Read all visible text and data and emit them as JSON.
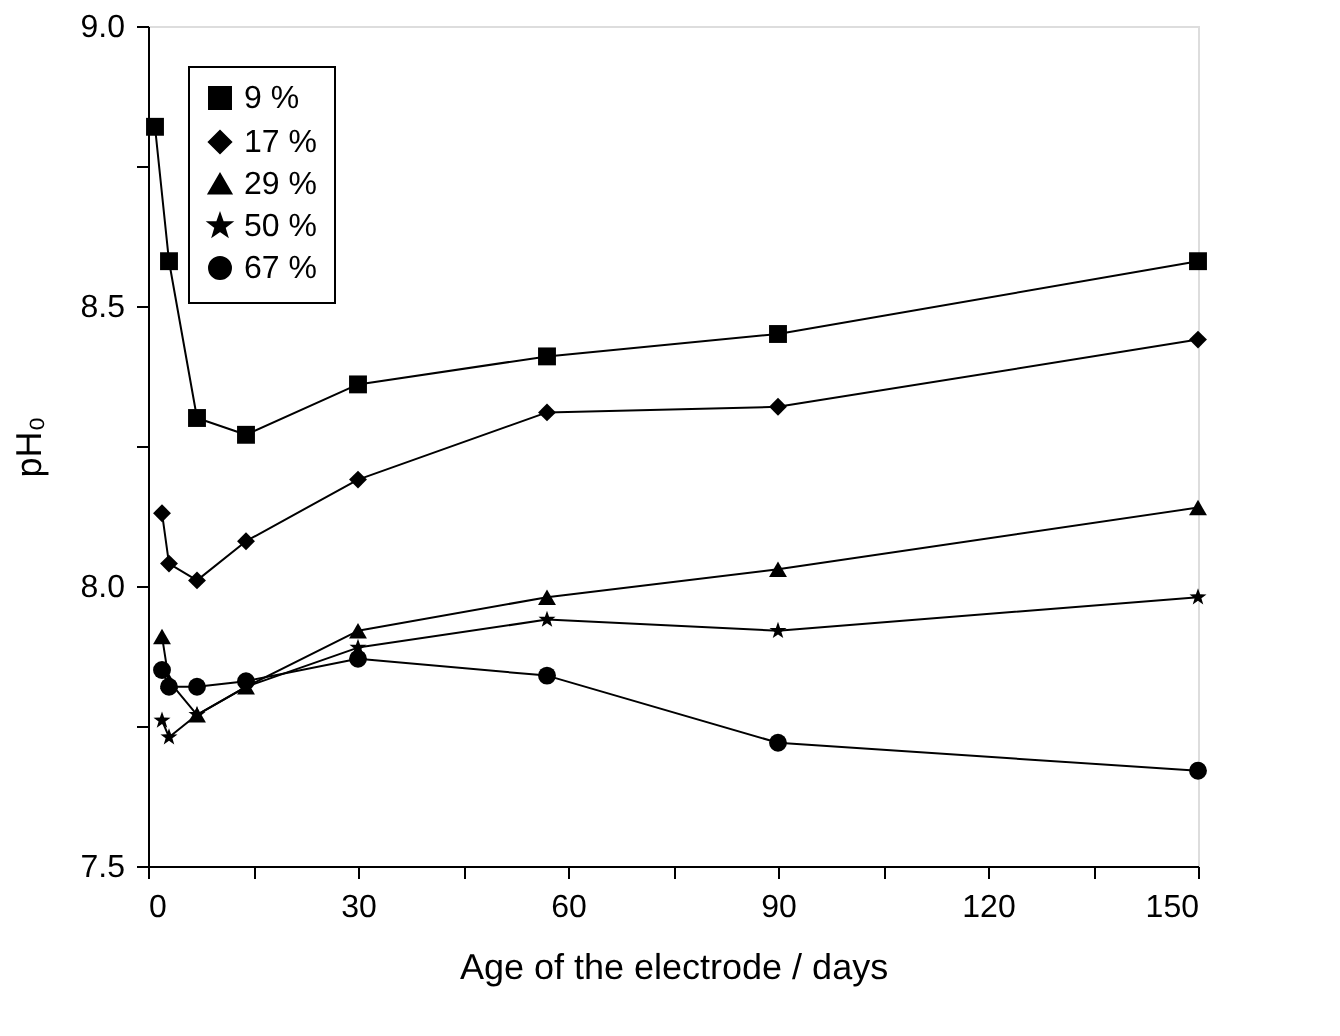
{
  "chart_data": {
    "type": "line",
    "xlabel": "Age of the electrode / days",
    "ylabel": "pH₀",
    "xlim": [
      0,
      150
    ],
    "ylim": [
      7.5,
      9.0
    ],
    "xticks": [
      0,
      {
        "value": 15,
        "label": null
      },
      30,
      {
        "value": 45,
        "label": null
      },
      60,
      {
        "value": 75,
        "label": null
      },
      90,
      {
        "value": 105,
        "label": null
      },
      120,
      {
        "value": 135,
        "label": null
      },
      150
    ],
    "yticks": [
      {
        "value": 7.5,
        "label": "7.5"
      },
      {
        "value": 7.75,
        "label": null
      },
      {
        "value": 8.0,
        "label": "8.0"
      },
      {
        "value": 8.25,
        "label": null
      },
      {
        "value": 8.5,
        "label": "8.5"
      },
      {
        "value": 8.75,
        "label": null
      },
      {
        "value": 9.0,
        "label": "9.0"
      }
    ],
    "grid": false,
    "legend": "top left",
    "line_style": "solid",
    "series": [
      {
        "name": "9 %",
        "color": "#000000",
        "marker": "square",
        "x": [
          1,
          3,
          7,
          14,
          30,
          57,
          90,
          150
        ],
        "values": [
          8.82,
          8.58,
          8.3,
          8.27,
          8.36,
          8.41,
          8.45,
          8.58
        ]
      },
      {
        "name": "17 %",
        "color": "#000000",
        "marker": "diamond",
        "x": [
          2,
          3,
          7,
          14,
          30,
          57,
          90,
          150
        ],
        "values": [
          8.13,
          8.04,
          8.01,
          8.08,
          8.19,
          8.31,
          8.32,
          8.44
        ]
      },
      {
        "name": "29 %",
        "color": "#000000",
        "marker": "triangle",
        "x": [
          2,
          3,
          7,
          14,
          30,
          57,
          90,
          150
        ],
        "values": [
          7.91,
          7.83,
          7.77,
          7.82,
          7.92,
          7.98,
          8.03,
          8.14
        ]
      },
      {
        "name": "50 %",
        "color": "#000000",
        "marker": "star",
        "x": [
          2,
          3,
          7,
          14,
          30,
          57,
          90,
          150
        ],
        "values": [
          7.76,
          7.73,
          7.77,
          7.82,
          7.89,
          7.94,
          7.92,
          7.98
        ]
      },
      {
        "name": "67 %",
        "color": "#000000",
        "marker": "circle",
        "x": [
          2,
          3,
          7,
          14,
          30,
          57,
          90,
          150
        ],
        "values": [
          7.85,
          7.82,
          7.82,
          7.83,
          7.87,
          7.84,
          7.72,
          7.67
        ]
      }
    ]
  }
}
